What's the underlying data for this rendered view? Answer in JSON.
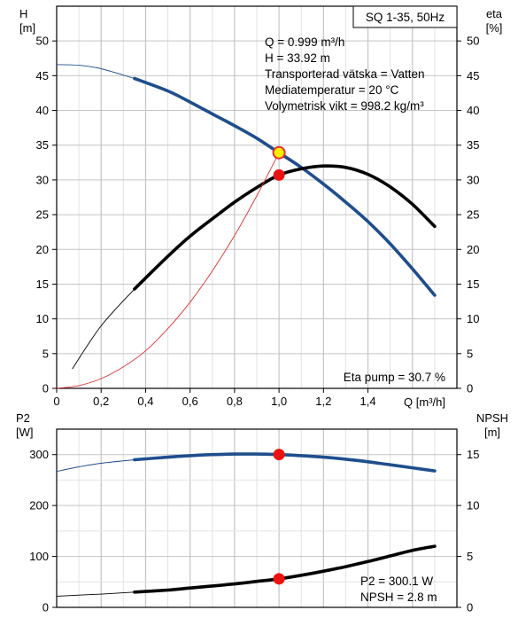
{
  "chart_data": [
    {
      "type": "line",
      "title": "SQ 1-35, 50Hz",
      "xlabel": "Q [m³/h]",
      "ylabel_line1": "H",
      "ylabel_line2": "[m]",
      "y2label_line1": "eta",
      "y2label_line2": "[%]",
      "xlim": [
        0,
        1.8
      ],
      "ylim": [
        0,
        55
      ],
      "y2lim": [
        0,
        55
      ],
      "x_ticks": [
        "0",
        "0,2",
        "0,4",
        "0,6",
        "0,8",
        "1,0",
        "1,2",
        "1,4"
      ],
      "y_ticks": [
        "0",
        "5",
        "10",
        "15",
        "20",
        "25",
        "30",
        "35",
        "40",
        "45",
        "50"
      ],
      "y2_ticks": [
        "0",
        "5",
        "10",
        "15",
        "20",
        "25",
        "30",
        "35",
        "40",
        "45",
        "50"
      ],
      "grid": true,
      "info_lines": [
        "Q = 0.999 m³/h",
        "H = 33.92 m",
        "Transporterad vätska = Vatten",
        "Mediatemperatur = 20 °C",
        "Volymetrisk vikt = 998.2 kg/m³"
      ],
      "bottom_note": "Eta pump = 30.7 %",
      "colors": {
        "head": "#1f4e8c",
        "eta": "#000000",
        "system": "#e03030",
        "point_fill": "#ffee00",
        "point_stroke": "#e03030",
        "dot": "#ee1111"
      },
      "series": [
        {
          "key": "head",
          "axis": "left",
          "thin_x": [
            0,
            0.1,
            0.2,
            0.35
          ],
          "thin_y": [
            46.6,
            46.5,
            46.0,
            44.6
          ],
          "x": [
            0.35,
            0.5,
            0.6,
            0.7,
            0.8,
            0.9,
            1.0,
            1.1,
            1.2,
            1.3,
            1.4,
            1.5,
            1.6,
            1.7
          ],
          "y": [
            44.6,
            42.8,
            41.2,
            39.5,
            37.8,
            36.0,
            33.9,
            31.8,
            29.4,
            26.8,
            24.0,
            20.8,
            17.2,
            13.4
          ]
        },
        {
          "key": "eta",
          "axis": "right",
          "thin_x": [
            0.07,
            0.2,
            0.35
          ],
          "thin_y": [
            2.8,
            9.0,
            14.3
          ],
          "x": [
            0.35,
            0.5,
            0.6,
            0.7,
            0.8,
            0.9,
            1.0,
            1.1,
            1.2,
            1.3,
            1.4,
            1.5,
            1.6,
            1.7
          ],
          "y": [
            14.3,
            19.0,
            21.9,
            24.4,
            26.8,
            28.9,
            30.7,
            31.6,
            32.0,
            31.8,
            30.8,
            29.0,
            26.5,
            23.3
          ]
        },
        {
          "key": "system",
          "axis": "left",
          "x": [
            0,
            0.1,
            0.2,
            0.3,
            0.4,
            0.5,
            0.6,
            0.7,
            0.8,
            0.9,
            1.0
          ],
          "y": [
            0,
            0.4,
            1.4,
            3.1,
            5.4,
            8.6,
            12.4,
            16.9,
            22.0,
            27.7,
            33.9
          ]
        }
      ],
      "duty_point": {
        "x": 1.0,
        "y": 33.92
      },
      "eta_point": {
        "x": 1.0,
        "y": 30.7
      }
    },
    {
      "type": "line",
      "ylabel_line1": "P2",
      "ylabel_line2": "[W]",
      "y2label_line1": "NPSH",
      "y2label_line2": "[m]",
      "xlim": [
        0,
        1.8
      ],
      "ylim": [
        0,
        350
      ],
      "y2lim": [
        0,
        17.5
      ],
      "y_ticks": [
        "0",
        "100",
        "200",
        "300"
      ],
      "y2_ticks": [
        "0",
        "5",
        "10",
        "15"
      ],
      "info_lines": [
        "P2 = 300.1 W",
        "NPSH = 2.8 m"
      ],
      "series": [
        {
          "key": "p2",
          "axis": "left",
          "thin_x": [
            0,
            0.1,
            0.2,
            0.35
          ],
          "thin_y": [
            267,
            276,
            283,
            290
          ],
          "x": [
            0.35,
            0.5,
            0.6,
            0.7,
            0.8,
            0.9,
            1.0,
            1.1,
            1.2,
            1.3,
            1.4,
            1.5,
            1.6,
            1.7
          ],
          "y": [
            290,
            295,
            298,
            300,
            301,
            301,
            300,
            298,
            295,
            291,
            286,
            280,
            274,
            268
          ]
        },
        {
          "key": "npsh",
          "axis": "right",
          "thin_x": [
            0,
            0.1,
            0.2,
            0.35
          ],
          "thin_y": [
            1.1,
            1.2,
            1.3,
            1.5
          ],
          "x": [
            0.35,
            0.5,
            0.6,
            0.7,
            0.8,
            0.9,
            1.0,
            1.1,
            1.2,
            1.3,
            1.4,
            1.5,
            1.6,
            1.7
          ],
          "y": [
            1.5,
            1.7,
            1.9,
            2.1,
            2.3,
            2.55,
            2.8,
            3.15,
            3.55,
            4.0,
            4.5,
            5.05,
            5.6,
            6.0
          ]
        }
      ],
      "p2_point": {
        "x": 1.0,
        "y": 300.1
      },
      "npsh_point": {
        "x": 1.0,
        "y": 2.8
      }
    }
  ]
}
